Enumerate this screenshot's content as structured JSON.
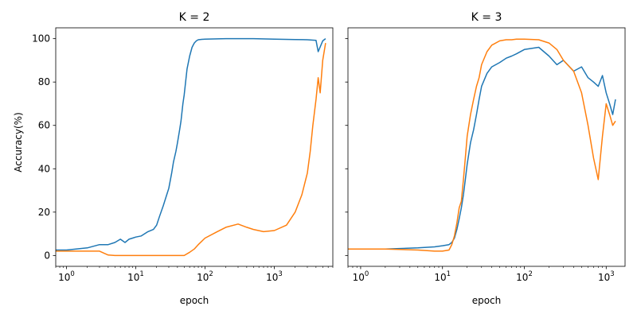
{
  "chart_data": [
    {
      "type": "line",
      "title": "K = 2",
      "xlabel": "epoch",
      "ylabel": "Accuracy(%)",
      "xscale": "log",
      "xlim": [
        0.7,
        7000
      ],
      "ylim": [
        -5,
        105
      ],
      "yticks": [
        0,
        20,
        40,
        60,
        80,
        100
      ],
      "xticks": [
        {
          "value": 1,
          "base": "10",
          "exp": "0"
        },
        {
          "value": 10,
          "base": "10",
          "exp": "1"
        },
        {
          "value": 100,
          "base": "10",
          "exp": "2"
        },
        {
          "value": 1000,
          "base": "10",
          "exp": "3"
        }
      ],
      "grid": false,
      "series": [
        {
          "color": "#1f77b4",
          "x": [
            0.7,
            1,
            2,
            3,
            4,
            5,
            6,
            7,
            8,
            9,
            10,
            12,
            15,
            18,
            20,
            22,
            25,
            28,
            30,
            33,
            35,
            38,
            40,
            43,
            45,
            48,
            50,
            55,
            60,
            65,
            70,
            75,
            80,
            90,
            100,
            150,
            200,
            500,
            1000,
            2000,
            3000,
            4000,
            4300,
            5000,
            5500
          ],
          "y": [
            2.5,
            2.5,
            3.5,
            5,
            5,
            6,
            7.5,
            6,
            7.5,
            8,
            8.5,
            9,
            11,
            12,
            14,
            18,
            23,
            28,
            31,
            38,
            43,
            48,
            52,
            58,
            62,
            70,
            74,
            86,
            92,
            96,
            98,
            99,
            99.5,
            99.7,
            99.8,
            99.9,
            100,
            100,
            99.8,
            99.6,
            99.5,
            99.2,
            94,
            99,
            100
          ]
        },
        {
          "color": "#ff7f0e",
          "x": [
            0.7,
            1,
            2,
            3,
            3.5,
            4,
            5,
            10,
            30,
            50,
            60,
            70,
            80,
            100,
            150,
            200,
            300,
            400,
            500,
            700,
            1000,
            1500,
            2000,
            2500,
            3000,
            3300,
            3600,
            4000,
            4300,
            4600,
            5000,
            5500
          ],
          "y": [
            2,
            2,
            2,
            2,
            1,
            0.2,
            0,
            0,
            0,
            0,
            1.5,
            3,
            5,
            8,
            11,
            13,
            14.5,
            13,
            12,
            11,
            11.5,
            14,
            20,
            28,
            38,
            48,
            60,
            72,
            82,
            75,
            90,
            98
          ]
        }
      ]
    },
    {
      "type": "line",
      "title": "K = 3",
      "xlabel": "epoch",
      "ylabel": "",
      "xscale": "log",
      "xlim": [
        0.7,
        1700
      ],
      "ylim": [
        -5,
        105
      ],
      "yticks": [
        0,
        20,
        40,
        60,
        80,
        100
      ],
      "xticks": [
        {
          "value": 1,
          "base": "10",
          "exp": "0"
        },
        {
          "value": 10,
          "base": "10",
          "exp": "1"
        },
        {
          "value": 100,
          "base": "10",
          "exp": "2"
        },
        {
          "value": 1000,
          "base": "10",
          "exp": "3"
        }
      ],
      "grid": false,
      "series": [
        {
          "color": "#1f77b4",
          "x": [
            0.7,
            1,
            2,
            5,
            8,
            10,
            12,
            13,
            14,
            15,
            16,
            17,
            18,
            19,
            20,
            22,
            24,
            26,
            28,
            30,
            35,
            40,
            50,
            60,
            70,
            80,
            100,
            150,
            200,
            250,
            300,
            400,
            500,
            600,
            700,
            800,
            900,
            1000,
            1100,
            1200,
            1300
          ],
          "y": [
            3,
            3,
            3,
            3.5,
            4,
            4.5,
            5,
            6,
            8,
            12,
            17,
            22,
            28,
            35,
            42,
            52,
            58,
            65,
            72,
            78,
            84,
            87,
            89,
            91,
            92,
            93,
            95,
            96,
            92,
            88,
            90,
            85,
            87,
            82,
            80,
            78,
            83,
            75,
            70,
            65,
            72
          ]
        },
        {
          "color": "#ff7f0e",
          "x": [
            0.7,
            1,
            2,
            5,
            8,
            10,
            12,
            13,
            14,
            15,
            16,
            17,
            18,
            19,
            20,
            22,
            24,
            26,
            28,
            30,
            35,
            40,
            50,
            60,
            70,
            80,
            100,
            150,
            200,
            250,
            300,
            400,
            500,
            600,
            700,
            800,
            900,
            1000,
            1100,
            1200,
            1300
          ],
          "y": [
            3,
            3,
            3,
            2.5,
            2,
            2,
            2.5,
            5,
            9,
            15,
            22,
            25,
            35,
            45,
            55,
            65,
            72,
            78,
            82,
            88,
            94,
            97,
            99,
            99.5,
            99.5,
            99.8,
            99.8,
            99.5,
            98,
            95,
            90,
            85,
            75,
            60,
            45,
            35,
            55,
            70,
            65,
            60,
            62
          ]
        }
      ]
    }
  ]
}
